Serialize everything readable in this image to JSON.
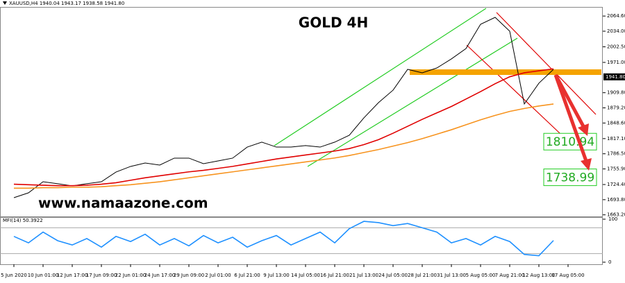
{
  "chart_data": [
    {
      "type": "line",
      "header": "XAUUSD,H4  1940.04 1943.17 1938.58 1941.80",
      "title": "GOLD 4H",
      "watermark": "www.namaazone.com",
      "categories": [
        "5 Jun 2020",
        null,
        "10 Jun 01:00",
        null,
        "12 Jun 17:00",
        null,
        "17 Jun 09:00",
        null,
        "22 Jun 01:00",
        null,
        "24 Jun 17:00",
        null,
        "29 Jun 09:00",
        null,
        "2 Jul 01:00",
        null,
        "6 Jul 21:00",
        null,
        "9 Jul 13:00",
        null,
        "14 Jul 05:00",
        null,
        "16 Jul 21:00",
        null,
        "21 Jul 13:00",
        null,
        "24 Jul 05:00",
        null,
        "28 Jul 21:00",
        null,
        "31 Jul 13:00",
        null,
        "5 Aug 05:00",
        null,
        "7 Aug 21:00",
        null,
        "12 Aug 13:00",
        null,
        "17 Aug 05:00",
        null
      ],
      "series": [
        {
          "color": "#000000",
          "values": [
            1697.8,
            1707.6,
            1730,
            1726,
            1721.6,
            1726,
            1730,
            1749.6,
            1760.9,
            1767.8,
            1763.7,
            1777.7,
            1777.7,
            1766.5,
            1772,
            1777.7,
            1800,
            1810,
            1800,
            1800,
            1803,
            1800,
            1810,
            1824,
            1859,
            1889.7,
            1915,
            1957,
            1950,
            1959.7,
            1978,
            1999,
            2048,
            2062,
            2034,
            1887,
            1929,
            1957,
            null,
            null
          ]
        },
        {
          "color": "#e00000",
          "values": [
            1725,
            1724,
            1723,
            1722,
            1722,
            1723,
            1725,
            1728,
            1733,
            1738,
            1742,
            1746,
            1750,
            1753,
            1757,
            1761,
            1766,
            1771,
            1776,
            1780,
            1784,
            1788,
            1792,
            1797,
            1805,
            1815,
            1828,
            1842,
            1856,
            1869,
            1882,
            1897,
            1912,
            1928,
            1942,
            1950,
            1954,
            1958,
            null,
            null
          ]
        },
        {
          "color": "#f7931e",
          "values": [
            1717,
            1717,
            1718,
            1718,
            1719,
            1719,
            1720,
            1722,
            1724,
            1727,
            1730,
            1734,
            1738,
            1742,
            1746,
            1750,
            1754,
            1758,
            1762,
            1766,
            1770,
            1774,
            1778,
            1783,
            1789,
            1795,
            1802,
            1809,
            1817,
            1826,
            1835,
            1845,
            1855,
            1864,
            1872,
            1878,
            1883,
            1887,
            null,
            null
          ]
        }
      ],
      "ylim": [
        1660,
        2083
      ],
      "yticks": [
        {
          "value": 2064.6,
          "label": "2064.60"
        },
        {
          "value": 2034.0,
          "label": "2034.00"
        },
        {
          "value": 2002.5,
          "label": "2002.50"
        },
        {
          "value": 1971.0,
          "label": "1971.00"
        },
        {
          "value": 1909.8,
          "label": "1909.80"
        },
        {
          "value": 1879.2,
          "label": "1879.20"
        },
        {
          "value": 1848.6,
          "label": "1848.60"
        },
        {
          "value": 1817.1,
          "label": "1817.10"
        },
        {
          "value": 1786.5,
          "label": "1786.50"
        },
        {
          "value": 1755.9,
          "label": "1755.90"
        },
        {
          "value": 1724.4,
          "label": "1724.40"
        },
        {
          "value": 1693.8,
          "label": "1693.80"
        },
        {
          "value": 1663.2,
          "label": "1663.20"
        }
      ],
      "current_price": {
        "value": 1941.8,
        "label": "1941.80"
      },
      "targets": [
        {
          "value": 1810.94,
          "label": "1810.94"
        },
        {
          "value": 1738.99,
          "label": "1738.99"
        }
      ]
    },
    {
      "type": "line",
      "title": "MFI(14) 50.3922",
      "series": [
        {
          "color": "#1e90ff",
          "values": [
            60,
            45,
            70,
            50,
            40,
            55,
            35,
            60,
            48,
            65,
            40,
            55,
            38,
            62,
            45,
            58,
            35,
            50,
            62,
            40,
            55,
            70,
            45,
            78,
            95,
            92,
            85,
            90,
            80,
            70,
            45,
            55,
            40,
            60,
            48,
            18,
            15,
            50.3922,
            null,
            null
          ]
        }
      ],
      "ylim": [
        0,
        100
      ],
      "yticks": [
        100,
        0
      ],
      "levels": [
        80,
        20
      ]
    }
  ]
}
